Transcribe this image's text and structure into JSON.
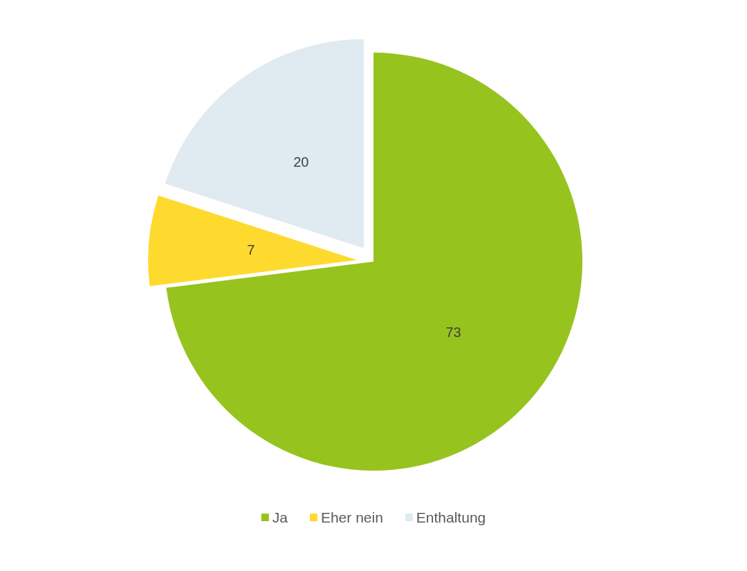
{
  "chart_data": {
    "type": "pie",
    "categories": [
      "Ja",
      "Eher nein",
      "Enthaltung"
    ],
    "values": [
      73,
      7,
      20
    ],
    "colors": [
      "#97c31f",
      "#ffda2e",
      "#e0eaf1"
    ],
    "data_labels": true,
    "legend": "bottom"
  }
}
